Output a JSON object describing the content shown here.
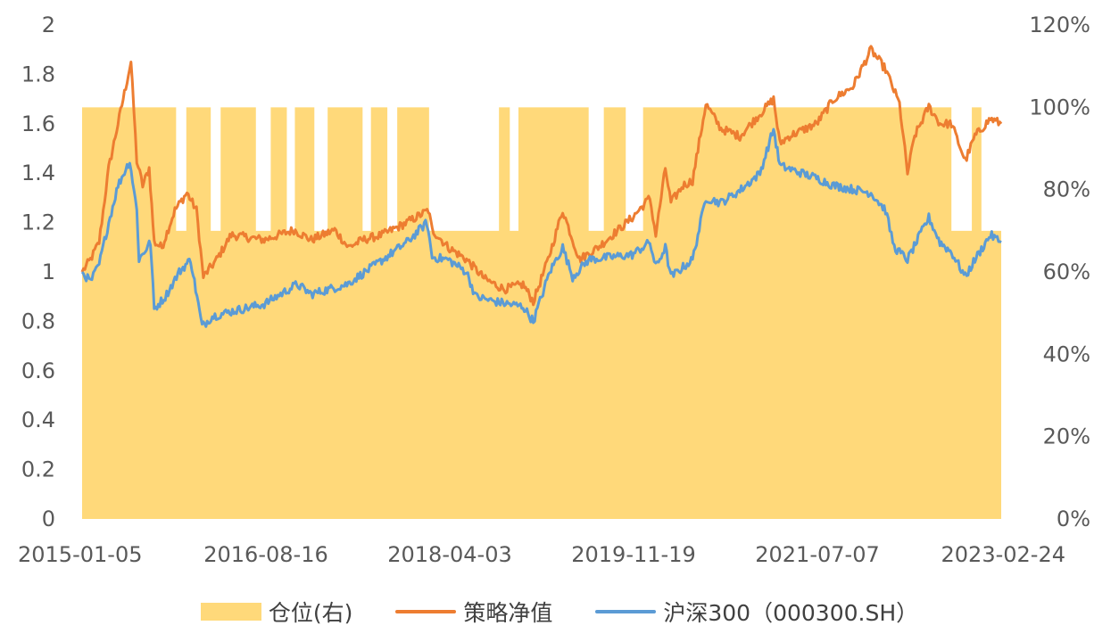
{
  "chart_data": {
    "type": "line",
    "subtype": "dual-axis line with stepped area",
    "x_range": [
      "2015-01-05",
      "2023-02-24"
    ],
    "x_tick_labels": [
      "2015-01-05",
      "2016-08-16",
      "2018-04-03",
      "2019-11-19",
      "2021-07-07",
      "2023-02-24"
    ],
    "y_left": {
      "min": 0,
      "max": 2,
      "step": 0.2,
      "tick_labels": [
        "0",
        "0.2",
        "0.4",
        "0.6",
        "0.8",
        "1",
        "1.2",
        "1.4",
        "1.6",
        "1.8",
        "2"
      ]
    },
    "y_right": {
      "min": 0,
      "max": 1.2,
      "step": 0.2,
      "format": "percent",
      "tick_labels": [
        "0%",
        "20%",
        "40%",
        "60%",
        "80%",
        "100%",
        "120%"
      ]
    },
    "grid": false,
    "legend_position": "bottom",
    "colors": {
      "position": "#FFD97A",
      "strategy": "#ED7D31",
      "csi300": "#5B9BD5"
    },
    "series": [
      {
        "name": "仓位(右)",
        "axis": "right",
        "kind": "area-step",
        "points": [
          [
            "2015-01-05",
            1.0
          ],
          [
            "2015-11-05",
            0.7
          ],
          [
            "2015-12-08",
            1.0
          ],
          [
            "2016-02-25",
            0.7
          ],
          [
            "2016-03-28",
            1.0
          ],
          [
            "2016-07-20",
            0.7
          ],
          [
            "2016-09-06",
            1.0
          ],
          [
            "2016-10-28",
            0.7
          ],
          [
            "2016-11-23",
            1.0
          ],
          [
            "2017-01-25",
            0.7
          ],
          [
            "2017-03-09",
            1.0
          ],
          [
            "2017-06-30",
            0.7
          ],
          [
            "2017-07-27",
            1.0
          ],
          [
            "2017-09-18",
            0.7
          ],
          [
            "2017-10-20",
            1.0
          ],
          [
            "2018-01-31",
            0.7
          ],
          [
            "2018-09-14",
            1.0
          ],
          [
            "2018-10-19",
            0.7
          ],
          [
            "2018-11-16",
            1.0
          ],
          [
            "2019-07-01",
            0.7
          ],
          [
            "2019-08-19",
            1.0
          ],
          [
            "2019-10-29",
            0.7
          ],
          [
            "2019-12-24",
            1.0
          ],
          [
            "2022-09-16",
            0.7
          ],
          [
            "2022-11-21",
            1.0
          ],
          [
            "2022-12-22",
            0.7
          ],
          [
            "2023-02-24",
            0.7
          ]
        ]
      },
      {
        "name": "策略净值",
        "axis": "left",
        "kind": "line",
        "points": [
          [
            "2015-01-05",
            1.0
          ],
          [
            "2015-02-01",
            1.05
          ],
          [
            "2015-03-01",
            1.12
          ],
          [
            "2015-04-01",
            1.42
          ],
          [
            "2015-05-01",
            1.6
          ],
          [
            "2015-06-12",
            1.85
          ],
          [
            "2015-07-01",
            1.45
          ],
          [
            "2015-07-20",
            1.35
          ],
          [
            "2015-08-10",
            1.42
          ],
          [
            "2015-08-26",
            1.12
          ],
          [
            "2015-09-20",
            1.1
          ],
          [
            "2015-11-01",
            1.25
          ],
          [
            "2015-12-10",
            1.32
          ],
          [
            "2016-01-10",
            1.25
          ],
          [
            "2016-02-01",
            0.98
          ],
          [
            "2016-03-15",
            1.05
          ],
          [
            "2016-05-01",
            1.15
          ],
          [
            "2016-08-16",
            1.13
          ],
          [
            "2016-11-20",
            1.17
          ],
          [
            "2017-01-15",
            1.13
          ],
          [
            "2017-04-01",
            1.17
          ],
          [
            "2017-05-15",
            1.1
          ],
          [
            "2017-07-01",
            1.13
          ],
          [
            "2017-09-01",
            1.15
          ],
          [
            "2017-11-20",
            1.2
          ],
          [
            "2018-01-29",
            1.25
          ],
          [
            "2018-02-10",
            1.17
          ],
          [
            "2018-04-03",
            1.1
          ],
          [
            "2018-06-01",
            1.05
          ],
          [
            "2018-08-01",
            0.97
          ],
          [
            "2018-10-01",
            0.93
          ],
          [
            "2018-12-01",
            0.95
          ],
          [
            "2019-01-03",
            0.88
          ],
          [
            "2019-02-20",
            1.05
          ],
          [
            "2019-04-08",
            1.25
          ],
          [
            "2019-06-01",
            1.05
          ],
          [
            "2019-08-01",
            1.1
          ],
          [
            "2019-11-19",
            1.22
          ],
          [
            "2020-01-15",
            1.3
          ],
          [
            "2020-02-03",
            1.15
          ],
          [
            "2020-03-05",
            1.42
          ],
          [
            "2020-03-23",
            1.28
          ],
          [
            "2020-05-01",
            1.35
          ],
          [
            "2020-06-01",
            1.37
          ],
          [
            "2020-07-14",
            1.68
          ],
          [
            "2020-09-01",
            1.58
          ],
          [
            "2020-11-01",
            1.55
          ],
          [
            "2021-02-18",
            1.7
          ],
          [
            "2021-03-10",
            1.52
          ],
          [
            "2021-04-10",
            1.55
          ],
          [
            "2021-07-07",
            1.6
          ],
          [
            "2021-09-01",
            1.7
          ],
          [
            "2021-11-01",
            1.75
          ],
          [
            "2021-12-30",
            1.9
          ],
          [
            "2022-02-15",
            1.82
          ],
          [
            "2022-04-01",
            1.68
          ],
          [
            "2022-04-27",
            1.4
          ],
          [
            "2022-05-20",
            1.55
          ],
          [
            "2022-07-05",
            1.67
          ],
          [
            "2022-08-10",
            1.6
          ],
          [
            "2022-09-16",
            1.6
          ],
          [
            "2022-10-31",
            1.45
          ],
          [
            "2022-12-01",
            1.55
          ],
          [
            "2023-01-20",
            1.62
          ],
          [
            "2023-02-24",
            1.6
          ]
        ]
      },
      {
        "name": "沪深300（000300.SH）",
        "axis": "left",
        "kind": "line",
        "points": [
          [
            "2015-01-05",
            1.0
          ],
          [
            "2015-02-01",
            0.96
          ],
          [
            "2015-03-01",
            1.03
          ],
          [
            "2015-04-01",
            1.2
          ],
          [
            "2015-05-01",
            1.35
          ],
          [
            "2015-06-08",
            1.45
          ],
          [
            "2015-07-01",
            1.25
          ],
          [
            "2015-07-08",
            1.05
          ],
          [
            "2015-08-14",
            1.12
          ],
          [
            "2015-08-26",
            0.85
          ],
          [
            "2015-10-01",
            0.9
          ],
          [
            "2015-11-15",
            1.0
          ],
          [
            "2015-12-22",
            1.05
          ],
          [
            "2016-01-28",
            0.78
          ],
          [
            "2016-03-01",
            0.82
          ],
          [
            "2016-05-01",
            0.84
          ],
          [
            "2016-08-16",
            0.87
          ],
          [
            "2016-11-30",
            0.95
          ],
          [
            "2017-01-15",
            0.91
          ],
          [
            "2017-05-10",
            0.95
          ],
          [
            "2017-08-01",
            1.02
          ],
          [
            "2017-11-20",
            1.12
          ],
          [
            "2018-01-24",
            1.2
          ],
          [
            "2018-02-10",
            1.06
          ],
          [
            "2018-04-03",
            1.05
          ],
          [
            "2018-06-01",
            1.0
          ],
          [
            "2018-07-01",
            0.9
          ],
          [
            "2018-09-01",
            0.88
          ],
          [
            "2018-12-01",
            0.86
          ],
          [
            "2019-01-03",
            0.8
          ],
          [
            "2019-02-25",
            1.0
          ],
          [
            "2019-04-08",
            1.1
          ],
          [
            "2019-05-10",
            0.98
          ],
          [
            "2019-07-01",
            1.05
          ],
          [
            "2019-11-19",
            1.07
          ],
          [
            "2020-01-15",
            1.12
          ],
          [
            "2020-02-03",
            1.02
          ],
          [
            "2020-03-05",
            1.1
          ],
          [
            "2020-03-23",
            0.98
          ],
          [
            "2020-06-01",
            1.05
          ],
          [
            "2020-07-14",
            1.3
          ],
          [
            "2020-09-01",
            1.28
          ],
          [
            "2020-11-01",
            1.33
          ],
          [
            "2021-01-05",
            1.4
          ],
          [
            "2021-02-18",
            1.58
          ],
          [
            "2021-03-10",
            1.43
          ],
          [
            "2021-07-07",
            1.38
          ],
          [
            "2021-09-01",
            1.35
          ],
          [
            "2021-12-30",
            1.32
          ],
          [
            "2022-02-15",
            1.25
          ],
          [
            "2022-03-15",
            1.1
          ],
          [
            "2022-04-27",
            1.05
          ],
          [
            "2022-07-05",
            1.22
          ],
          [
            "2022-08-10",
            1.12
          ],
          [
            "2022-09-16",
            1.08
          ],
          [
            "2022-10-31",
            0.98
          ],
          [
            "2022-12-01",
            1.05
          ],
          [
            "2023-01-20",
            1.15
          ],
          [
            "2023-02-24",
            1.12
          ]
        ]
      }
    ]
  }
}
